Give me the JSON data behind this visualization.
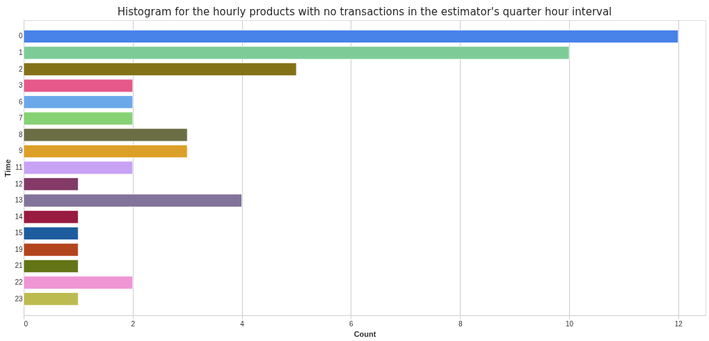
{
  "chart_data": {
    "type": "bar",
    "orientation": "horizontal",
    "title": "Histogram for the hourly products with no transactions in the estimator's quarter hour interval",
    "xlabel": "Count",
    "ylabel": "Time",
    "categories": [
      "0",
      "1",
      "2",
      "3",
      "6",
      "7",
      "8",
      "9",
      "11",
      "12",
      "13",
      "14",
      "15",
      "19",
      "21",
      "22",
      "23"
    ],
    "values": [
      12,
      10,
      5,
      2,
      2,
      2,
      3,
      3,
      2,
      1,
      4,
      1,
      1,
      1,
      1,
      2,
      1
    ],
    "colors": [
      "#4682e8",
      "#7dcc98",
      "#837218",
      "#e6588a",
      "#6aa8ea",
      "#86d173",
      "#6b6e45",
      "#dca028",
      "#c7a2f5",
      "#833a66",
      "#82739b",
      "#981b40",
      "#1d5c9e",
      "#b2441e",
      "#627416",
      "#ef95d4",
      "#bcbb4f"
    ],
    "xlim": [
      0,
      12.5
    ],
    "xticks": [
      0,
      2,
      4,
      6,
      8,
      10,
      12
    ],
    "grid": "x"
  }
}
